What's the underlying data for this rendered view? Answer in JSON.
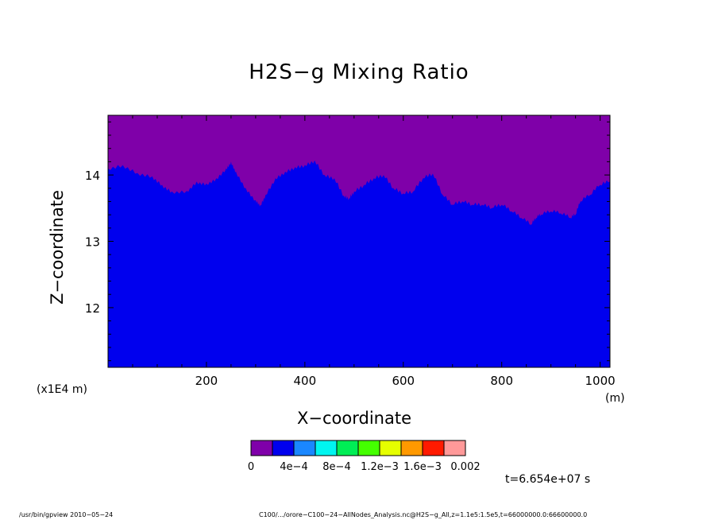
{
  "title": "H2S−g Mixing Ratio",
  "xlabel": "X−coordinate",
  "ylabel": "Z−coordinate",
  "x_scale_note": "(x1E4 m)",
  "x_unit": "(m)",
  "time_label": "t=6.654e+07 s",
  "footer_left": "/usr/bin/gpview   2010−05−24",
  "footer_right": "C100/.../orore−C100−24−AllNodes_Analysis.nc@H2S−g_All,z=1.1e5:1.5e5,t=66000000.0:66600000.0",
  "colors": {
    "upper": "#7f00a9",
    "lower": "#0000ee",
    "frame": "#000000"
  },
  "chart_data": {
    "type": "heatmap",
    "title": "H2S−g Mixing Ratio",
    "xlabel": "X−coordinate",
    "ylabel": "Z−coordinate",
    "xlim": [
      0,
      1020
    ],
    "ylim": [
      11.1,
      14.9
    ],
    "xticks": [
      200,
      400,
      600,
      800,
      1000
    ],
    "xtick_labels": [
      "200",
      "400",
      "600",
      "800",
      "1000"
    ],
    "yticks": [
      12,
      13,
      14
    ],
    "ytick_labels": [
      "12",
      "13",
      "14"
    ],
    "boundary": {
      "description": "interface between the 0–4e-4 (upper) and 4e-4–8e-4 (lower) contour bands",
      "x": [
        0,
        30,
        60,
        90,
        110,
        130,
        160,
        180,
        200,
        220,
        240,
        250,
        260,
        280,
        300,
        310,
        320,
        340,
        360,
        380,
        400,
        420,
        440,
        460,
        480,
        490,
        500,
        520,
        540,
        560,
        580,
        600,
        620,
        640,
        660,
        680,
        700,
        720,
        740,
        760,
        780,
        800,
        820,
        840,
        860,
        870,
        880,
        900,
        920,
        940,
        950,
        960,
        980,
        1000,
        1020
      ],
      "z": [
        14.1,
        14.15,
        14.03,
        13.98,
        13.85,
        13.75,
        13.76,
        13.9,
        13.87,
        13.95,
        14.1,
        14.2,
        14.05,
        13.8,
        13.62,
        13.55,
        13.7,
        13.95,
        14.05,
        14.12,
        14.15,
        14.22,
        14.0,
        13.95,
        13.68,
        13.65,
        13.75,
        13.85,
        13.95,
        14.0,
        13.8,
        13.72,
        13.75,
        13.95,
        14.02,
        13.7,
        13.55,
        13.6,
        13.55,
        13.55,
        13.5,
        13.55,
        13.45,
        13.35,
        13.25,
        13.35,
        13.4,
        13.45,
        13.42,
        13.35,
        13.4,
        13.6,
        13.7,
        13.85,
        13.9
      ]
    },
    "colorbar": {
      "levels": [
        "0",
        "4e−4",
        "8e−4",
        "1.2e−3",
        "1.6e−3",
        "0.002"
      ],
      "colors": [
        "#7f00a9",
        "#0000ee",
        "#1a87ff",
        "#00f5f0",
        "#00ee55",
        "#44ff00",
        "#e6ff00",
        "#ff9900",
        "#ff1a00",
        "#ff9999"
      ]
    }
  }
}
